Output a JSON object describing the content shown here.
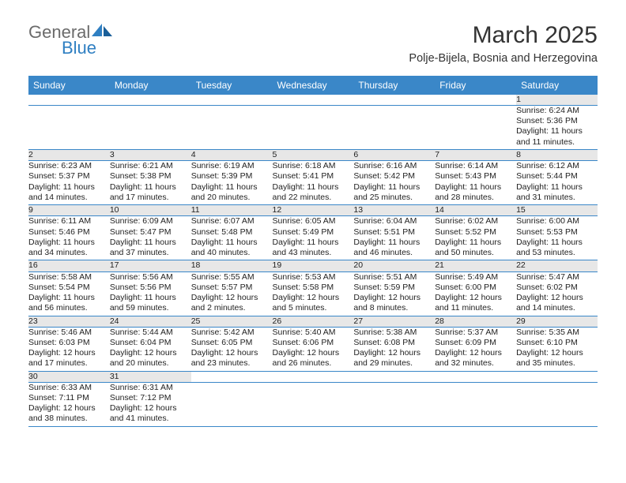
{
  "brand": {
    "part1": "General",
    "part2": "Blue"
  },
  "title": "March 2025",
  "location": "Polje-Bijela, Bosnia and Herzegovina",
  "colors": {
    "header_bg": "#3a87c8",
    "header_fg": "#ffffff",
    "daynum_bg": "#e7e7e7",
    "rule": "#3a87c8",
    "brand_gray": "#6b6b6b",
    "brand_blue": "#2f7fc2",
    "text": "#222222",
    "page_bg": "#ffffff"
  },
  "weekdays": [
    "Sunday",
    "Monday",
    "Tuesday",
    "Wednesday",
    "Thursday",
    "Friday",
    "Saturday"
  ],
  "weeks": [
    [
      null,
      null,
      null,
      null,
      null,
      null,
      {
        "n": "1",
        "sr": "Sunrise: 6:24 AM",
        "ss": "Sunset: 5:36 PM",
        "d1": "Daylight: 11 hours",
        "d2": "and 11 minutes."
      }
    ],
    [
      {
        "n": "2",
        "sr": "Sunrise: 6:23 AM",
        "ss": "Sunset: 5:37 PM",
        "d1": "Daylight: 11 hours",
        "d2": "and 14 minutes."
      },
      {
        "n": "3",
        "sr": "Sunrise: 6:21 AM",
        "ss": "Sunset: 5:38 PM",
        "d1": "Daylight: 11 hours",
        "d2": "and 17 minutes."
      },
      {
        "n": "4",
        "sr": "Sunrise: 6:19 AM",
        "ss": "Sunset: 5:39 PM",
        "d1": "Daylight: 11 hours",
        "d2": "and 20 minutes."
      },
      {
        "n": "5",
        "sr": "Sunrise: 6:18 AM",
        "ss": "Sunset: 5:41 PM",
        "d1": "Daylight: 11 hours",
        "d2": "and 22 minutes."
      },
      {
        "n": "6",
        "sr": "Sunrise: 6:16 AM",
        "ss": "Sunset: 5:42 PM",
        "d1": "Daylight: 11 hours",
        "d2": "and 25 minutes."
      },
      {
        "n": "7",
        "sr": "Sunrise: 6:14 AM",
        "ss": "Sunset: 5:43 PM",
        "d1": "Daylight: 11 hours",
        "d2": "and 28 minutes."
      },
      {
        "n": "8",
        "sr": "Sunrise: 6:12 AM",
        "ss": "Sunset: 5:44 PM",
        "d1": "Daylight: 11 hours",
        "d2": "and 31 minutes."
      }
    ],
    [
      {
        "n": "9",
        "sr": "Sunrise: 6:11 AM",
        "ss": "Sunset: 5:46 PM",
        "d1": "Daylight: 11 hours",
        "d2": "and 34 minutes."
      },
      {
        "n": "10",
        "sr": "Sunrise: 6:09 AM",
        "ss": "Sunset: 5:47 PM",
        "d1": "Daylight: 11 hours",
        "d2": "and 37 minutes."
      },
      {
        "n": "11",
        "sr": "Sunrise: 6:07 AM",
        "ss": "Sunset: 5:48 PM",
        "d1": "Daylight: 11 hours",
        "d2": "and 40 minutes."
      },
      {
        "n": "12",
        "sr": "Sunrise: 6:05 AM",
        "ss": "Sunset: 5:49 PM",
        "d1": "Daylight: 11 hours",
        "d2": "and 43 minutes."
      },
      {
        "n": "13",
        "sr": "Sunrise: 6:04 AM",
        "ss": "Sunset: 5:51 PM",
        "d1": "Daylight: 11 hours",
        "d2": "and 46 minutes."
      },
      {
        "n": "14",
        "sr": "Sunrise: 6:02 AM",
        "ss": "Sunset: 5:52 PM",
        "d1": "Daylight: 11 hours",
        "d2": "and 50 minutes."
      },
      {
        "n": "15",
        "sr": "Sunrise: 6:00 AM",
        "ss": "Sunset: 5:53 PM",
        "d1": "Daylight: 11 hours",
        "d2": "and 53 minutes."
      }
    ],
    [
      {
        "n": "16",
        "sr": "Sunrise: 5:58 AM",
        "ss": "Sunset: 5:54 PM",
        "d1": "Daylight: 11 hours",
        "d2": "and 56 minutes."
      },
      {
        "n": "17",
        "sr": "Sunrise: 5:56 AM",
        "ss": "Sunset: 5:56 PM",
        "d1": "Daylight: 11 hours",
        "d2": "and 59 minutes."
      },
      {
        "n": "18",
        "sr": "Sunrise: 5:55 AM",
        "ss": "Sunset: 5:57 PM",
        "d1": "Daylight: 12 hours",
        "d2": "and 2 minutes."
      },
      {
        "n": "19",
        "sr": "Sunrise: 5:53 AM",
        "ss": "Sunset: 5:58 PM",
        "d1": "Daylight: 12 hours",
        "d2": "and 5 minutes."
      },
      {
        "n": "20",
        "sr": "Sunrise: 5:51 AM",
        "ss": "Sunset: 5:59 PM",
        "d1": "Daylight: 12 hours",
        "d2": "and 8 minutes."
      },
      {
        "n": "21",
        "sr": "Sunrise: 5:49 AM",
        "ss": "Sunset: 6:00 PM",
        "d1": "Daylight: 12 hours",
        "d2": "and 11 minutes."
      },
      {
        "n": "22",
        "sr": "Sunrise: 5:47 AM",
        "ss": "Sunset: 6:02 PM",
        "d1": "Daylight: 12 hours",
        "d2": "and 14 minutes."
      }
    ],
    [
      {
        "n": "23",
        "sr": "Sunrise: 5:46 AM",
        "ss": "Sunset: 6:03 PM",
        "d1": "Daylight: 12 hours",
        "d2": "and 17 minutes."
      },
      {
        "n": "24",
        "sr": "Sunrise: 5:44 AM",
        "ss": "Sunset: 6:04 PM",
        "d1": "Daylight: 12 hours",
        "d2": "and 20 minutes."
      },
      {
        "n": "25",
        "sr": "Sunrise: 5:42 AM",
        "ss": "Sunset: 6:05 PM",
        "d1": "Daylight: 12 hours",
        "d2": "and 23 minutes."
      },
      {
        "n": "26",
        "sr": "Sunrise: 5:40 AM",
        "ss": "Sunset: 6:06 PM",
        "d1": "Daylight: 12 hours",
        "d2": "and 26 minutes."
      },
      {
        "n": "27",
        "sr": "Sunrise: 5:38 AM",
        "ss": "Sunset: 6:08 PM",
        "d1": "Daylight: 12 hours",
        "d2": "and 29 minutes."
      },
      {
        "n": "28",
        "sr": "Sunrise: 5:37 AM",
        "ss": "Sunset: 6:09 PM",
        "d1": "Daylight: 12 hours",
        "d2": "and 32 minutes."
      },
      {
        "n": "29",
        "sr": "Sunrise: 5:35 AM",
        "ss": "Sunset: 6:10 PM",
        "d1": "Daylight: 12 hours",
        "d2": "and 35 minutes."
      }
    ],
    [
      {
        "n": "30",
        "sr": "Sunrise: 6:33 AM",
        "ss": "Sunset: 7:11 PM",
        "d1": "Daylight: 12 hours",
        "d2": "and 38 minutes."
      },
      {
        "n": "31",
        "sr": "Sunrise: 6:31 AM",
        "ss": "Sunset: 7:12 PM",
        "d1": "Daylight: 12 hours",
        "d2": "and 41 minutes."
      },
      null,
      null,
      null,
      null,
      null
    ]
  ]
}
